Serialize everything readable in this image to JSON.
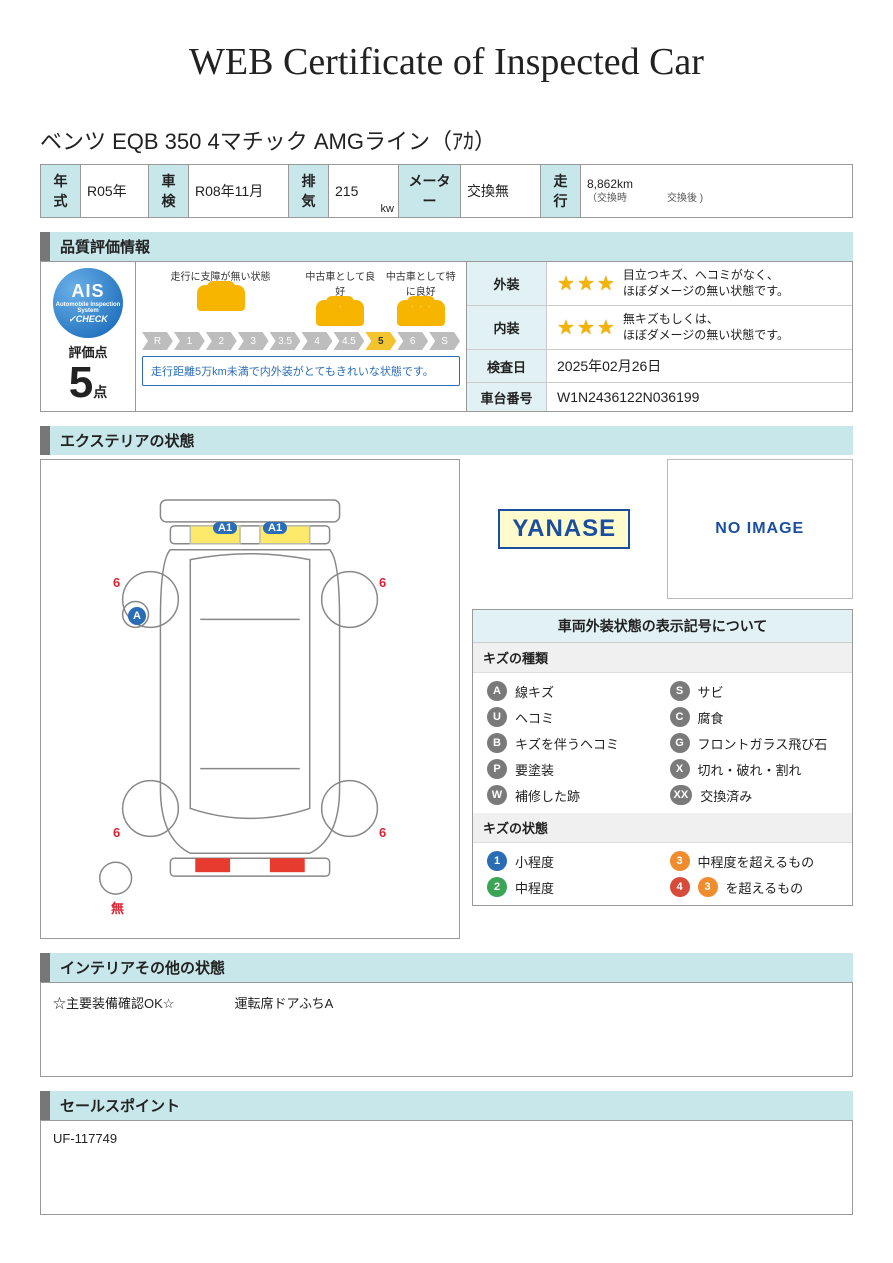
{
  "title": "WEB Certificate of Inspected Car",
  "car_name": "ベンツ EQB 350 4マチック AMGライン（ｱｶ）",
  "spec": {
    "year_label": "年式",
    "year_value": "R05年",
    "shaken_label": "車検",
    "shaken_value": "R08年11月",
    "haiki_label": "排気",
    "haiki_value": "215",
    "haiki_unit": "kw",
    "meter_label": "メーター",
    "meter_value": "交換無",
    "soko_label": "走行",
    "mileage": "8,862km",
    "mileage_sub_left": "（交換時",
    "mileage_sub_right": "交換後                     )"
  },
  "sections": {
    "quality": "品質評価情報",
    "exterior": "エクステリアの状態",
    "interior": "インテリアその他の状態",
    "sales": "セールスポイント"
  },
  "ais": {
    "brand": "AIS",
    "brand_sub": "Automobile Inspection System",
    "check": "✓CHECK",
    "score_label": "評価点",
    "score": "5",
    "score_unit": "点"
  },
  "grade": {
    "cat1": "走行に支障が無い状態",
    "cat2": "中古車として良好",
    "cat3": "中古車として特に良好",
    "steps": [
      "R",
      "1",
      "2",
      "3",
      "3.5",
      "4",
      "4.5",
      "5",
      "6",
      "S"
    ],
    "active_step": "5",
    "note": "走行距離5万km未満で内外装がとてもきれいな状態です。"
  },
  "ratings": {
    "exterior_label": "外装",
    "exterior_stars": 3,
    "exterior_desc": "目立つキズ、ヘコミがなく、\nほぼダメージの無い状態です。",
    "interior_label": "内装",
    "interior_stars": 3,
    "interior_desc": "無キズもしくは、\nほぼダメージの無い状態です。",
    "date_label": "検査日",
    "date_value": "2025年02月26日",
    "vin_label": "車台番号",
    "vin_value": "W1N2436122N036199"
  },
  "diagram": {
    "front_badges": [
      "A1",
      "A1"
    ],
    "left_mirror": "A",
    "tire_marks": [
      "6",
      "6",
      "6",
      "6"
    ],
    "rear_text": "無"
  },
  "logos": {
    "yanase": "YANASE",
    "noimage": "NO IMAGE"
  },
  "legend": {
    "title": "車両外装状態の表示記号について",
    "kind_title": "キズの種類",
    "kinds": [
      {
        "code": "A",
        "color": "grey",
        "text": "線キズ"
      },
      {
        "code": "S",
        "color": "grey",
        "text": "サビ"
      },
      {
        "code": "U",
        "color": "grey",
        "text": "ヘコミ"
      },
      {
        "code": "C",
        "color": "grey",
        "text": "腐食"
      },
      {
        "code": "B",
        "color": "grey",
        "text": "キズを伴うヘコミ"
      },
      {
        "code": "G",
        "color": "grey",
        "text": "フロントガラス飛び石"
      },
      {
        "code": "P",
        "color": "grey",
        "text": "要塗装"
      },
      {
        "code": "X",
        "color": "grey",
        "text": "切れ・破れ・割れ"
      },
      {
        "code": "W",
        "color": "grey",
        "text": "補修した跡"
      },
      {
        "code": "XX",
        "color": "grey",
        "text": "交換済み"
      }
    ],
    "state_title": "キズの状態",
    "states": [
      {
        "code": "1",
        "color": "blue",
        "text": "小程度"
      },
      {
        "code": "3",
        "color": "orange",
        "text": "中程度を超えるもの"
      },
      {
        "code": "2",
        "color": "green",
        "text": "中程度"
      },
      {
        "code": "4+3",
        "color": "red-orange",
        "text": "を超えるもの"
      }
    ]
  },
  "interior_notes": {
    "left": "☆主要装備確認OK☆",
    "right": "運転席ドアふちA"
  },
  "sales_point": "UF-117749",
  "colors": {
    "header_bg": "#c7e7ea",
    "accent_blue": "#2a6db6",
    "star": "#f5b301",
    "car_icon": "#f7b500",
    "border": "#999999"
  }
}
